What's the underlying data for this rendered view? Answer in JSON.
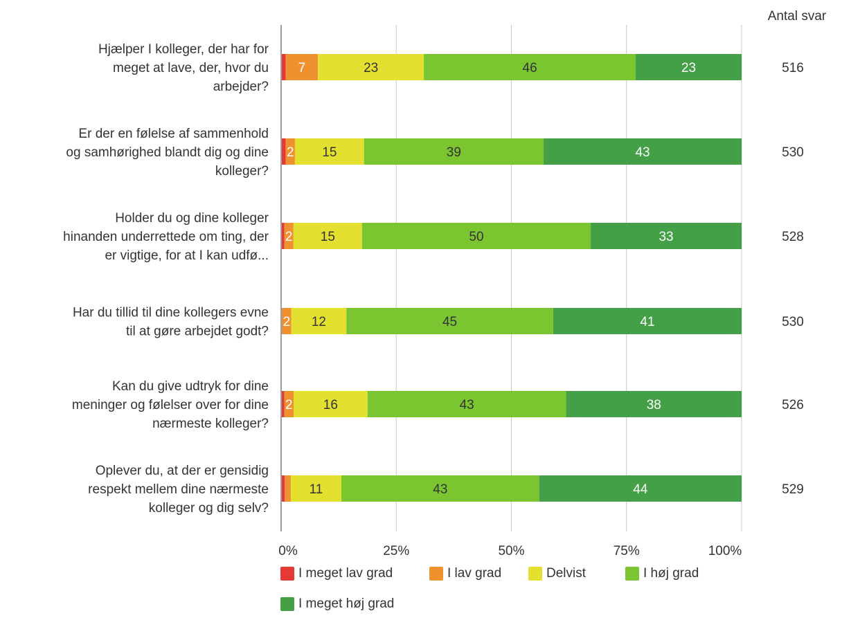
{
  "chart_data": {
    "type": "bar",
    "orientation": "horizontal",
    "stacked": true,
    "percent_stacked": true,
    "categories": [
      "Hjælper I kolleger, der har for meget at lave, der, hvor du arbejder?",
      "Er der en følelse af sammenhold og samhørighed blandt dig og dine kolleger?",
      "Holder du og dine kolleger hinanden underrettede om ting, der er vigtige, for at I kan udfø...",
      "Har du tillid til dine kollegers evne til at gøre arbejdet godt?",
      "Kan du give udtryk for dine meninger og følelser over for dine nærmeste kolleger?",
      "Oplever du, at der er gensidig respekt mellem dine nærmeste kolleger og dig selv?"
    ],
    "category_lines": [
      [
        "Hjælper I kolleger, der har for",
        "meget at lave, der, hvor du",
        "arbejder?"
      ],
      [
        "Er der en følelse af sammenhold",
        "og samhørighed blandt dig og dine",
        "kolleger?"
      ],
      [
        "Holder du og dine kolleger",
        "hinanden underrettede om ting, der",
        "er vigtige, for at I kan udfø..."
      ],
      [
        "Har du tillid til dine kollegers evne",
        "til at gøre arbejdet godt?"
      ],
      [
        "Kan du give udtryk for dine",
        "meninger og følelser over for dine",
        "nærmeste kolleger?"
      ],
      [
        "Oplever du, at der er gensidig",
        "respekt mellem dine nærmeste",
        "kolleger og dig selv?"
      ]
    ],
    "series": [
      {
        "name": "I meget lav grad",
        "color": "#e53935",
        "values": [
          1,
          1,
          0.7,
          0.2,
          0.7,
          0.8
        ]
      },
      {
        "name": "I lav grad",
        "color": "#f0912f",
        "values": [
          7,
          2,
          2,
          2,
          2,
          1.3
        ]
      },
      {
        "name": "Delvist",
        "color": "#e3e02f",
        "values": [
          23,
          15,
          15,
          12,
          16,
          11
        ]
      },
      {
        "name": "I høj grad",
        "color": "#7ac530",
        "values": [
          46,
          39,
          50,
          45,
          43,
          43
        ]
      },
      {
        "name": "I meget høj grad",
        "color": "#43a047",
        "values": [
          23,
          43,
          33,
          41,
          38,
          44
        ]
      }
    ],
    "data_labels": [
      [
        "",
        "7",
        "23",
        "46",
        "23"
      ],
      [
        "",
        "2",
        "15",
        "39",
        "43"
      ],
      [
        "",
        "2",
        "15",
        "50",
        "33"
      ],
      [
        "",
        "2",
        "12",
        "45",
        "41"
      ],
      [
        "",
        "2",
        "16",
        "43",
        "38"
      ],
      [
        "",
        "",
        "11",
        "43",
        "44"
      ]
    ],
    "label_colors": [
      "#ffffff",
      "#ffffff",
      "#333333",
      "#333333",
      "#ffffff"
    ],
    "xlim": [
      0,
      100
    ],
    "x_ticks": [
      "0%",
      "25%",
      "50%",
      "75%",
      "100%"
    ],
    "grid": true,
    "legend": "bottom",
    "side_header": "Antal svar",
    "side_values": [
      "516",
      "530",
      "528",
      "530",
      "526",
      "529"
    ]
  }
}
